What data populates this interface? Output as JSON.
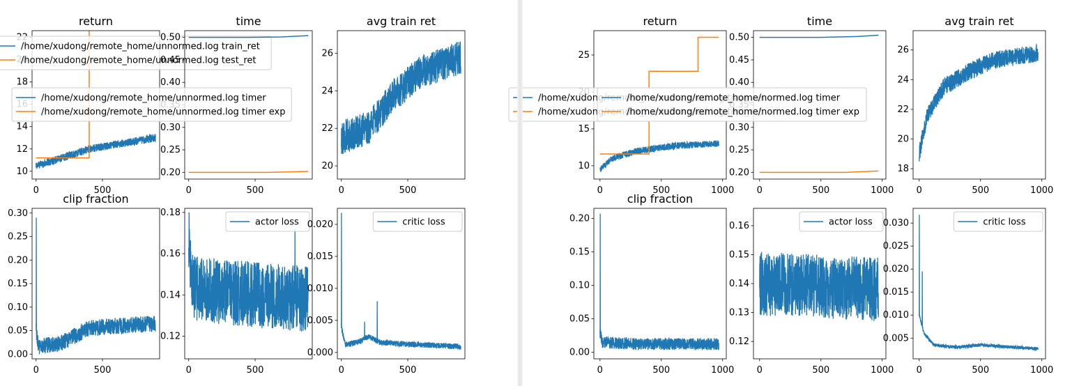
{
  "colors": {
    "blue": "#1f77b4",
    "orange": "#ff7f0e",
    "axis": "#000000",
    "legend_border": "#cccccc"
  },
  "chart_data": [
    {
      "panel": "left",
      "type": "line",
      "subplots": [
        {
          "id": "return",
          "title": "return",
          "xlim": [
            -30,
            930
          ],
          "ylim": [
            9.3,
            22.6
          ],
          "yticks": [
            10,
            12,
            14,
            16,
            18,
            20,
            22
          ],
          "xticks": [
            0,
            500
          ],
          "series": [
            {
              "name": "/home/xudong/remote_home/unnormed.log train_ret",
              "color": "blue",
              "kind": "noisy_trend",
              "n": 900,
              "points": [
                [
                  0,
                  10.5
                ],
                [
                  200,
                  11.2
                ],
                [
                  400,
                  12.0
                ],
                [
                  600,
                  12.4
                ],
                [
                  800,
                  12.8
                ],
                [
                  900,
                  13.0
                ]
              ],
              "noise": 0.7
            },
            {
              "name": "/home/xudong/remote_home/unnormed.log test_ret",
              "color": "orange",
              "kind": "step",
              "points": [
                [
                  0,
                  11.2
                ],
                [
                  400,
                  11.2
                ],
                [
                  400,
                  23.5
                ],
                [
                  900,
                  23.5
                ]
              ]
            }
          ],
          "legend": {
            "placement": "upper-left",
            "entries": [
              {
                "label": "/home/xudong/remote_home/unnormed.log train_ret",
                "color": "blue"
              },
              {
                "label": "/home/xudong/remote_home/unnormed.log test_ret",
                "color": "orange"
              }
            ]
          }
        },
        {
          "id": "time",
          "title": "time",
          "xlim": [
            -30,
            930
          ],
          "ylim": [
            0.185,
            0.515
          ],
          "yticks": [
            0.2,
            0.25,
            0.3,
            0.35,
            0.4,
            0.45,
            0.5
          ],
          "xticks": [
            0,
            500
          ],
          "series": [
            {
              "name": "/home/xudong/remote_home/unnormed.log timer",
              "color": "blue",
              "kind": "line",
              "points": [
                [
                  0,
                  0.5
                ],
                [
                  450,
                  0.5
                ],
                [
                  700,
                  0.501
                ],
                [
                  900,
                  0.504
                ]
              ]
            },
            {
              "name": "/home/xudong/remote_home/unnormed.log timer exp",
              "color": "orange",
              "kind": "line",
              "points": [
                [
                  0,
                  0.2
                ],
                [
                  600,
                  0.2
                ],
                [
                  900,
                  0.202
                ]
              ]
            }
          ],
          "legend": {
            "placement": "center",
            "entries": [
              {
                "label": "/home/xudong/remote_home/unnormed.log timer",
                "color": "blue"
              },
              {
                "label": "/home/xudong/remote_home/unnormed.log timer exp",
                "color": "orange"
              }
            ]
          }
        },
        {
          "id": "avg",
          "title": "avg train ret",
          "xlim": [
            -30,
            930
          ],
          "ylim": [
            19.3,
            27.2
          ],
          "yticks": [
            20,
            22,
            24,
            26
          ],
          "xticks": [
            0,
            500
          ],
          "series": [
            {
              "name": "avg train ret",
              "color": "blue",
              "kind": "noisy_trend",
              "n": 900,
              "points": [
                [
                  0,
                  21.5
                ],
                [
                  200,
                  22.0
                ],
                [
                  400,
                  23.8
                ],
                [
                  600,
                  25.0
                ],
                [
                  800,
                  25.5
                ],
                [
                  900,
                  25.8
                ]
              ],
              "noise": 1.8
            }
          ]
        },
        {
          "id": "clip",
          "title": "clip fraction",
          "xlim": [
            -30,
            930
          ],
          "ylim": [
            -0.01,
            0.31
          ],
          "yticks": [
            0.0,
            0.05,
            0.1,
            0.15,
            0.2,
            0.25,
            0.3
          ],
          "xticks": [
            0,
            500
          ],
          "series": [
            {
              "name": "clip fraction",
              "color": "blue",
              "kind": "noisy_trend",
              "n": 900,
              "spikes": [
                [
                  2,
                  0.29
                ]
              ],
              "points": [
                [
                  0,
                  0.05
                ],
                [
                  20,
                  0.015
                ],
                [
                  200,
                  0.025
                ],
                [
                  400,
                  0.055
                ],
                [
                  600,
                  0.06
                ],
                [
                  900,
                  0.065
                ]
              ],
              "noise": 0.035
            }
          ]
        },
        {
          "id": "actor",
          "title": "",
          "xlim": [
            -30,
            930
          ],
          "ylim": [
            0.109,
            0.182
          ],
          "yticks": [
            0.12,
            0.14,
            0.16,
            0.18
          ],
          "xticks": [
            0,
            500
          ],
          "series": [
            {
              "name": "actor loss",
              "color": "blue",
              "kind": "noisy_trend",
              "n": 900,
              "spikes": [
                [
                  3,
                  0.18
                ],
                [
                  800,
                  0.172
                ]
              ],
              "points": [
                [
                  0,
                  0.16
                ],
                [
                  30,
                  0.143
                ],
                [
                  500,
                  0.14
                ],
                [
                  900,
                  0.138
                ]
              ],
              "noise": 0.032
            }
          ],
          "legend": {
            "placement": "upper-right",
            "entries": [
              {
                "label": "actor loss",
                "color": "blue"
              }
            ]
          }
        },
        {
          "id": "critic",
          "title": "",
          "xlim": [
            -30,
            930
          ],
          "ylim": [
            -0.001,
            0.0225
          ],
          "yticks": [
            0.0,
            0.005,
            0.01,
            0.015,
            0.02
          ],
          "xticks": [
            0,
            500
          ],
          "series": [
            {
              "name": "critic loss",
              "color": "blue",
              "kind": "noisy_trend",
              "n": 900,
              "spikes": [
                [
                  1,
                  0.0218
                ],
                [
                  270,
                  0.008
                ],
                [
                  175,
                  0.0048
                ]
              ],
              "points": [
                [
                  0,
                  0.004
                ],
                [
                  30,
                  0.0012
                ],
                [
                  150,
                  0.0018
                ],
                [
                  200,
                  0.0025
                ],
                [
                  300,
                  0.0015
                ],
                [
                  900,
                  0.0009
                ]
              ],
              "noise": 0.0009
            }
          ],
          "legend": {
            "placement": "upper-right",
            "entries": [
              {
                "label": "critic loss",
                "color": "blue"
              }
            ]
          }
        }
      ]
    },
    {
      "panel": "right",
      "type": "line",
      "subplots": [
        {
          "id": "return",
          "title": "return",
          "xlim": [
            -50,
            1030
          ],
          "ylim": [
            8.2,
            28.3
          ],
          "yticks": [
            10,
            15,
            20,
            25
          ],
          "xticks": [
            0,
            500,
            1000
          ],
          "series": [
            {
              "name": "/home/xudong/remote_home/normed.log train_ret",
              "color": "blue",
              "kind": "noisy_trend",
              "n": 970,
              "points": [
                [
                  0,
                  9.5
                ],
                [
                  100,
                  11.0
                ],
                [
                  300,
                  12.0
                ],
                [
                  600,
                  12.7
                ],
                [
                  970,
                  13.0
                ]
              ],
              "noise": 0.9
            },
            {
              "name": "/home/xudong/remote_home/normed.log test_ret",
              "color": "orange",
              "kind": "step",
              "points": [
                [
                  0,
                  11.6
                ],
                [
                  400,
                  11.6
                ],
                [
                  400,
                  22.8
                ],
                [
                  800,
                  22.8
                ],
                [
                  800,
                  27.4
                ],
                [
                  970,
                  27.4
                ]
              ]
            }
          ],
          "legend": {
            "placement": "center",
            "entries": [
              {
                "label": "/home/xudong/remote_home/normed.log train_ret",
                "color": "blue"
              },
              {
                "label": "/home/xudong/remote_home/normed.log test_ret",
                "color": "orange"
              }
            ]
          }
        },
        {
          "id": "time",
          "title": "time",
          "xlim": [
            -50,
            1030
          ],
          "ylim": [
            0.185,
            0.515
          ],
          "yticks": [
            0.2,
            0.25,
            0.3,
            0.35,
            0.4,
            0.45,
            0.5
          ],
          "xticks": [
            0,
            500,
            1000
          ],
          "series": [
            {
              "name": "/home/xudong/remote_home/normed.log timer",
              "color": "blue",
              "kind": "line",
              "points": [
                [
                  0,
                  0.5
                ],
                [
                  500,
                  0.5
                ],
                [
                  800,
                  0.502
                ],
                [
                  970,
                  0.505
                ]
              ]
            },
            {
              "name": "/home/xudong/remote_home/normed.log timer exp",
              "color": "orange",
              "kind": "line",
              "points": [
                [
                  0,
                  0.2
                ],
                [
                  700,
                  0.2
                ],
                [
                  970,
                  0.203
                ]
              ]
            }
          ],
          "legend": {
            "placement": "center",
            "entries": [
              {
                "label": "/home/xudong/remote_home/normed.log timer",
                "color": "blue"
              },
              {
                "label": "/home/xudong/remote_home/normed.log timer exp",
                "color": "orange"
              }
            ]
          }
        },
        {
          "id": "avg",
          "title": "avg train ret",
          "xlim": [
            -50,
            1030
          ],
          "ylim": [
            17.3,
            27.3
          ],
          "yticks": [
            18,
            20,
            22,
            24,
            26
          ],
          "xticks": [
            0,
            500,
            1000
          ],
          "series": [
            {
              "name": "avg train ret",
              "color": "blue",
              "kind": "noisy_trend",
              "n": 970,
              "points": [
                [
                  0,
                  19.0
                ],
                [
                  60,
                  21.5
                ],
                [
                  200,
                  23.5
                ],
                [
                  400,
                  24.5
                ],
                [
                  600,
                  25.3
                ],
                [
                  970,
                  25.8
                ]
              ],
              "noise": 1.2
            }
          ]
        },
        {
          "id": "clip",
          "title": "clip fraction",
          "xlim": [
            -50,
            1030
          ],
          "ylim": [
            -0.01,
            0.215
          ],
          "yticks": [
            0.0,
            0.05,
            0.1,
            0.15,
            0.2
          ],
          "xticks": [
            0,
            500,
            1000
          ],
          "series": [
            {
              "name": "clip fraction",
              "color": "blue",
              "kind": "noisy_trend",
              "n": 970,
              "spikes": [
                [
                  2,
                  0.207
                ]
              ],
              "points": [
                [
                  0,
                  0.03
                ],
                [
                  20,
                  0.015
                ],
                [
                  300,
                  0.012
                ],
                [
                  970,
                  0.012
                ]
              ],
              "noise": 0.018
            }
          ]
        },
        {
          "id": "actor",
          "title": "",
          "xlim": [
            -50,
            1030
          ],
          "ylim": [
            0.114,
            0.166
          ],
          "yticks": [
            0.12,
            0.13,
            0.14,
            0.15,
            0.16
          ],
          "xticks": [
            0,
            500,
            1000
          ],
          "series": [
            {
              "name": "actor loss",
              "color": "blue",
              "kind": "noisy_trend",
              "n": 970,
              "points": [
                [
                  0,
                  0.14
                ],
                [
                  500,
                  0.139
                ],
                [
                  970,
                  0.138
                ]
              ],
              "noise": 0.022
            }
          ],
          "legend": {
            "placement": "upper-right",
            "entries": [
              {
                "label": "actor loss",
                "color": "blue"
              }
            ]
          }
        },
        {
          "id": "critic",
          "title": "",
          "xlim": [
            -50,
            1030
          ],
          "ylim": [
            0.0005,
            0.0332
          ],
          "yticks": [
            0.005,
            0.01,
            0.015,
            0.02,
            0.025,
            0.03
          ],
          "xticks": [
            0,
            500,
            1000
          ],
          "series": [
            {
              "name": "critic loss",
              "color": "blue",
              "kind": "noisy_trend",
              "n": 970,
              "spikes": [
                [
                  1,
                  0.0318
                ],
                [
                  25,
                  0.0195
                ]
              ],
              "points": [
                [
                  0,
                  0.01
                ],
                [
                  40,
                  0.006
                ],
                [
                  120,
                  0.0035
                ],
                [
                  300,
                  0.003
                ],
                [
                  500,
                  0.0035
                ],
                [
                  970,
                  0.0027
                ]
              ],
              "noise": 0.0007
            }
          ],
          "legend": {
            "placement": "upper-right",
            "entries": [
              {
                "label": "critic loss",
                "color": "blue"
              }
            ]
          }
        }
      ]
    }
  ]
}
